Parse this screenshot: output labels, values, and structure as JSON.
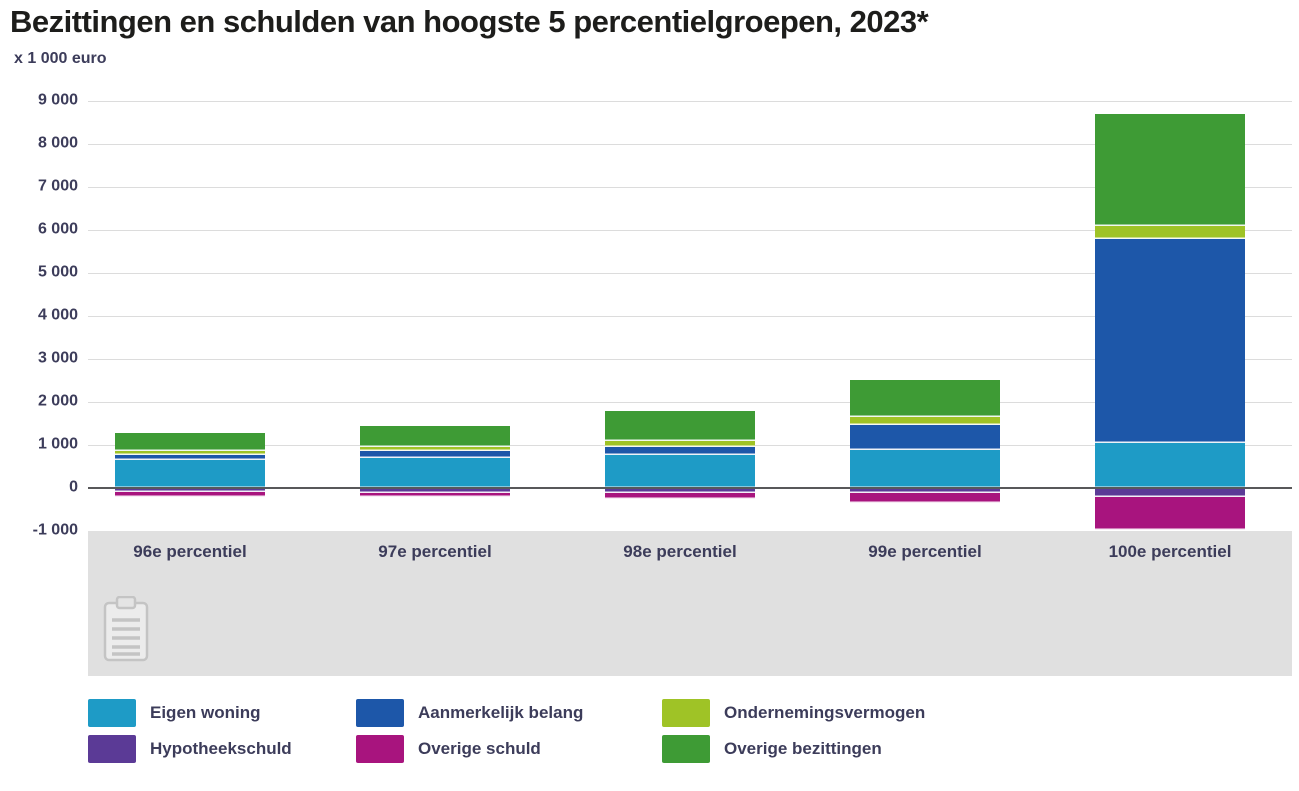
{
  "header": {
    "title": "Bezittingen en schulden van hoogste 5 percentielgroepen, 2023*",
    "unit_label": "x 1 000 euro"
  },
  "chart_data": {
    "type": "bar",
    "stacked": true,
    "title": "Bezittingen en schulden van hoogste 5 percentielgroepen, 2023*",
    "ylabel": "x 1 000 euro",
    "xlabel": "",
    "ylim": [
      -1000,
      9000
    ],
    "grid": true,
    "legend_position": "bottom",
    "categories": [
      "96e percentiel",
      "97e percentiel",
      "98e percentiel",
      "99e percentiel",
      "100e percentiel"
    ],
    "series": [
      {
        "name": "Eigen woning",
        "color": "#1e9bc6",
        "values": [
          640,
          700,
          770,
          880,
          1050
        ]
      },
      {
        "name": "Aanmerkelijk belang",
        "color": "#1d57a9",
        "values": [
          130,
          150,
          180,
          580,
          4740
        ]
      },
      {
        "name": "Ondernemingsvermogen",
        "color": "#9fc326",
        "values": [
          90,
          110,
          150,
          180,
          300
        ]
      },
      {
        "name": "Overige bezittingen",
        "color": "#3e9b35",
        "values": [
          410,
          480,
          690,
          880,
          2610
        ]
      },
      {
        "name": "Hypotheekschuld",
        "color": "#5b3a96",
        "values": [
          -100,
          -120,
          -110,
          -120,
          -220
        ]
      },
      {
        "name": "Overige schuld",
        "color": "#a8147e",
        "values": [
          -100,
          -80,
          -150,
          -230,
          -760
        ]
      }
    ],
    "yticks": [
      {
        "label": "9 000",
        "value": 9000
      },
      {
        "label": "8 000",
        "value": 8000
      },
      {
        "label": "7 000",
        "value": 7000
      },
      {
        "label": "6 000",
        "value": 6000
      },
      {
        "label": "5 000",
        "value": 5000
      },
      {
        "label": "4 000",
        "value": 4000
      },
      {
        "label": "3 000",
        "value": 3000
      },
      {
        "label": "2 000",
        "value": 2000
      },
      {
        "label": "1 000",
        "value": 1000
      },
      {
        "label": "0",
        "value": 0
      },
      {
        "label": "-1 000",
        "value": -1000
      }
    ]
  },
  "legend": {
    "items": [
      {
        "label": "Eigen woning",
        "color": "#1e9bc6"
      },
      {
        "label": "Aanmerkelijk belang",
        "color": "#1d57a9"
      },
      {
        "label": "Ondernemingsvermogen",
        "color": "#9fc326"
      },
      {
        "label": "Hypotheekschuld",
        "color": "#5b3a96"
      },
      {
        "label": "Overige schuld",
        "color": "#a8147e"
      },
      {
        "label": "Overige bezittingen",
        "color": "#3e9b35"
      }
    ]
  },
  "icons": {
    "data_table_icon": "clipboard-table-icon"
  },
  "colors": {
    "gray_band": "#e0e0e0",
    "gridline": "#dcdcdc",
    "zero_line": "#58585a",
    "text": "#3c3c5a",
    "title_text": "#1d1d1b"
  }
}
